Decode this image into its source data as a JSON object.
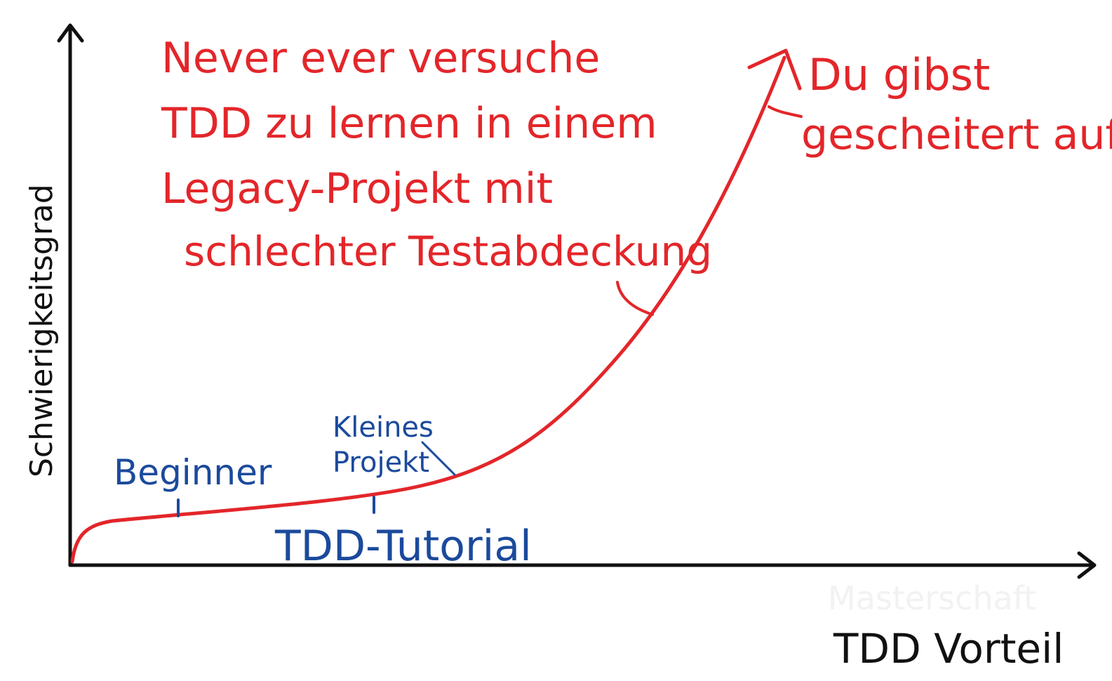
{
  "axes": {
    "y_label": "Schwierigkeitsgrad",
    "x_label": "TDD Vorteil"
  },
  "annotations": {
    "warning_lines": [
      "Never ever versuche",
      "TDD zu lernen in einem",
      "Legacy-Projekt mit",
      "schlechter Testabdeckung"
    ],
    "fail_lines": [
      "Du gibst",
      "gescheitert auf!"
    ],
    "beginner": "Beginner",
    "small_project_lines": [
      "Kleines",
      "Projekt"
    ],
    "tutorial": "TDD-Tutorial"
  },
  "watermark": "Masterschaft",
  "colors": {
    "curve": "#e3262a",
    "warning_text": "#e3262a",
    "milestone_text": "#1b4a9c",
    "axis": "#111111"
  }
}
